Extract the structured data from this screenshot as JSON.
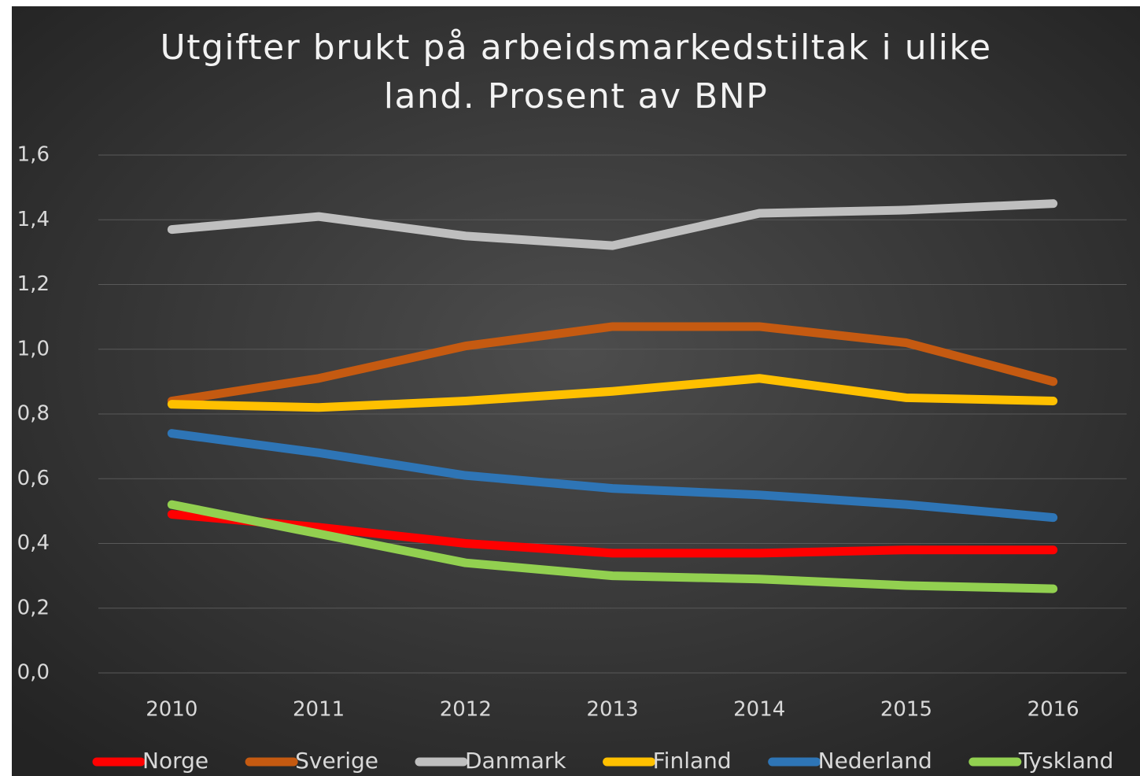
{
  "chart_data": {
    "type": "line",
    "title": "Utgifter brukt på arbeidsmarkedstiltak i ulike land. Prosent av BNP",
    "categories": [
      "2010",
      "2011",
      "2012",
      "2013",
      "2014",
      "2015",
      "2016"
    ],
    "series": [
      {
        "name": "Norge",
        "color": "#ff0000",
        "values": [
          0.49,
          0.45,
          0.4,
          0.37,
          0.37,
          0.38,
          0.38
        ]
      },
      {
        "name": "Sverige",
        "color": "#c55a11",
        "values": [
          0.84,
          0.91,
          1.01,
          1.07,
          1.07,
          1.02,
          0.9
        ]
      },
      {
        "name": "Danmark",
        "color": "#bfbfbf",
        "values": [
          1.37,
          1.41,
          1.35,
          1.32,
          1.42,
          1.43,
          1.45
        ]
      },
      {
        "name": "Finland",
        "color": "#ffc000",
        "values": [
          0.83,
          0.82,
          0.84,
          0.87,
          0.91,
          0.85,
          0.84
        ]
      },
      {
        "name": "Nederland",
        "color": "#2e75b6",
        "values": [
          0.74,
          0.68,
          0.61,
          0.57,
          0.55,
          0.52,
          0.48
        ]
      },
      {
        "name": "Tyskland",
        "color": "#92d050",
        "values": [
          0.52,
          0.43,
          0.34,
          0.3,
          0.29,
          0.27,
          0.26
        ]
      }
    ],
    "ylim": [
      0,
      1.6
    ],
    "yticks": [
      {
        "value": 0,
        "label": "0,0"
      },
      {
        "value": 0.2,
        "label": "0,2"
      },
      {
        "value": 0.4,
        "label": "0,4"
      },
      {
        "value": 0.6,
        "label": "0,6"
      },
      {
        "value": 0.8,
        "label": "0,8"
      },
      {
        "value": 1.0,
        "label": "1,0"
      },
      {
        "value": 1.2,
        "label": "1,2"
      },
      {
        "value": 1.4,
        "label": "1,4"
      },
      {
        "value": 1.6,
        "label": "1,6"
      }
    ],
    "grid": true,
    "legend": "bottom"
  }
}
